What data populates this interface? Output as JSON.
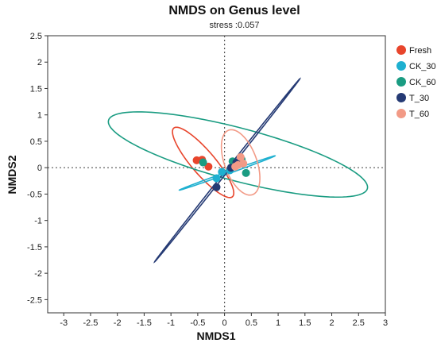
{
  "chart_data": {
    "type": "scatter",
    "title": "NMDS on Genus level",
    "subtitle": "stress :0.057",
    "xlabel": "NMDS1",
    "ylabel": "NMDS2",
    "xlim": [
      -3.3,
      3.0
    ],
    "ylim": [
      -2.75,
      2.5
    ],
    "xticks": [
      "-3",
      "-2.5",
      "-2",
      "-1.5",
      "-1",
      "-0.5",
      "0",
      "0.5",
      "1",
      "1.5",
      "2",
      "2.5",
      "3"
    ],
    "yticks": [
      "2.5",
      "2",
      "1.5",
      "1",
      "0.5",
      "0",
      "-0.5",
      "-1",
      "-1.5",
      "-2",
      "-2.5"
    ],
    "reference_lines": {
      "x": 0,
      "y": 0,
      "style": "dotted"
    },
    "legend_position": "top-right",
    "series": [
      {
        "name": "Fresh",
        "color": "#e8452c",
        "points": [
          [
            -0.52,
            0.14
          ],
          [
            -0.42,
            0.15
          ],
          [
            -0.3,
            0.02
          ]
        ],
        "ellipse": {
          "cx": -0.4,
          "cy": 0.1,
          "rx": 0.85,
          "ry": 0.22,
          "angle": -50
        }
      },
      {
        "name": "CK_30",
        "color": "#1eb0d0",
        "points": [
          [
            -0.15,
            -0.2
          ],
          [
            -0.05,
            -0.08
          ],
          [
            0.1,
            -0.05
          ]
        ],
        "ellipse": {
          "cx": 0.05,
          "cy": -0.1,
          "rx": 0.95,
          "ry": 0.02,
          "angle": 20
        }
      },
      {
        "name": "CK_60",
        "color": "#1a9c82",
        "points": [
          [
            -0.4,
            0.1
          ],
          [
            0.15,
            0.12
          ],
          [
            0.32,
            0.15
          ],
          [
            0.4,
            -0.1
          ]
        ],
        "ellipse": {
          "cx": 0.25,
          "cy": 0.25,
          "rx": 2.5,
          "ry": 0.5,
          "angle": -15
        }
      },
      {
        "name": "T_30",
        "color": "#253a74",
        "points": [
          [
            -0.15,
            -0.37
          ],
          [
            0.12,
            0.0
          ],
          [
            0.22,
            0.1
          ]
        ],
        "ellipse": {
          "cx": 0.05,
          "cy": -0.05,
          "rx": 2.2,
          "ry": 0.02,
          "angle": 52
        }
      },
      {
        "name": "T_60",
        "color": "#f29a86",
        "points": [
          [
            0.25,
            0.05
          ],
          [
            0.3,
            0.2
          ],
          [
            0.35,
            0.08
          ],
          [
            0.2,
            0.02
          ]
        ],
        "ellipse": {
          "cx": 0.3,
          "cy": 0.1,
          "rx": 0.65,
          "ry": 0.3,
          "angle": -70
        }
      }
    ]
  }
}
